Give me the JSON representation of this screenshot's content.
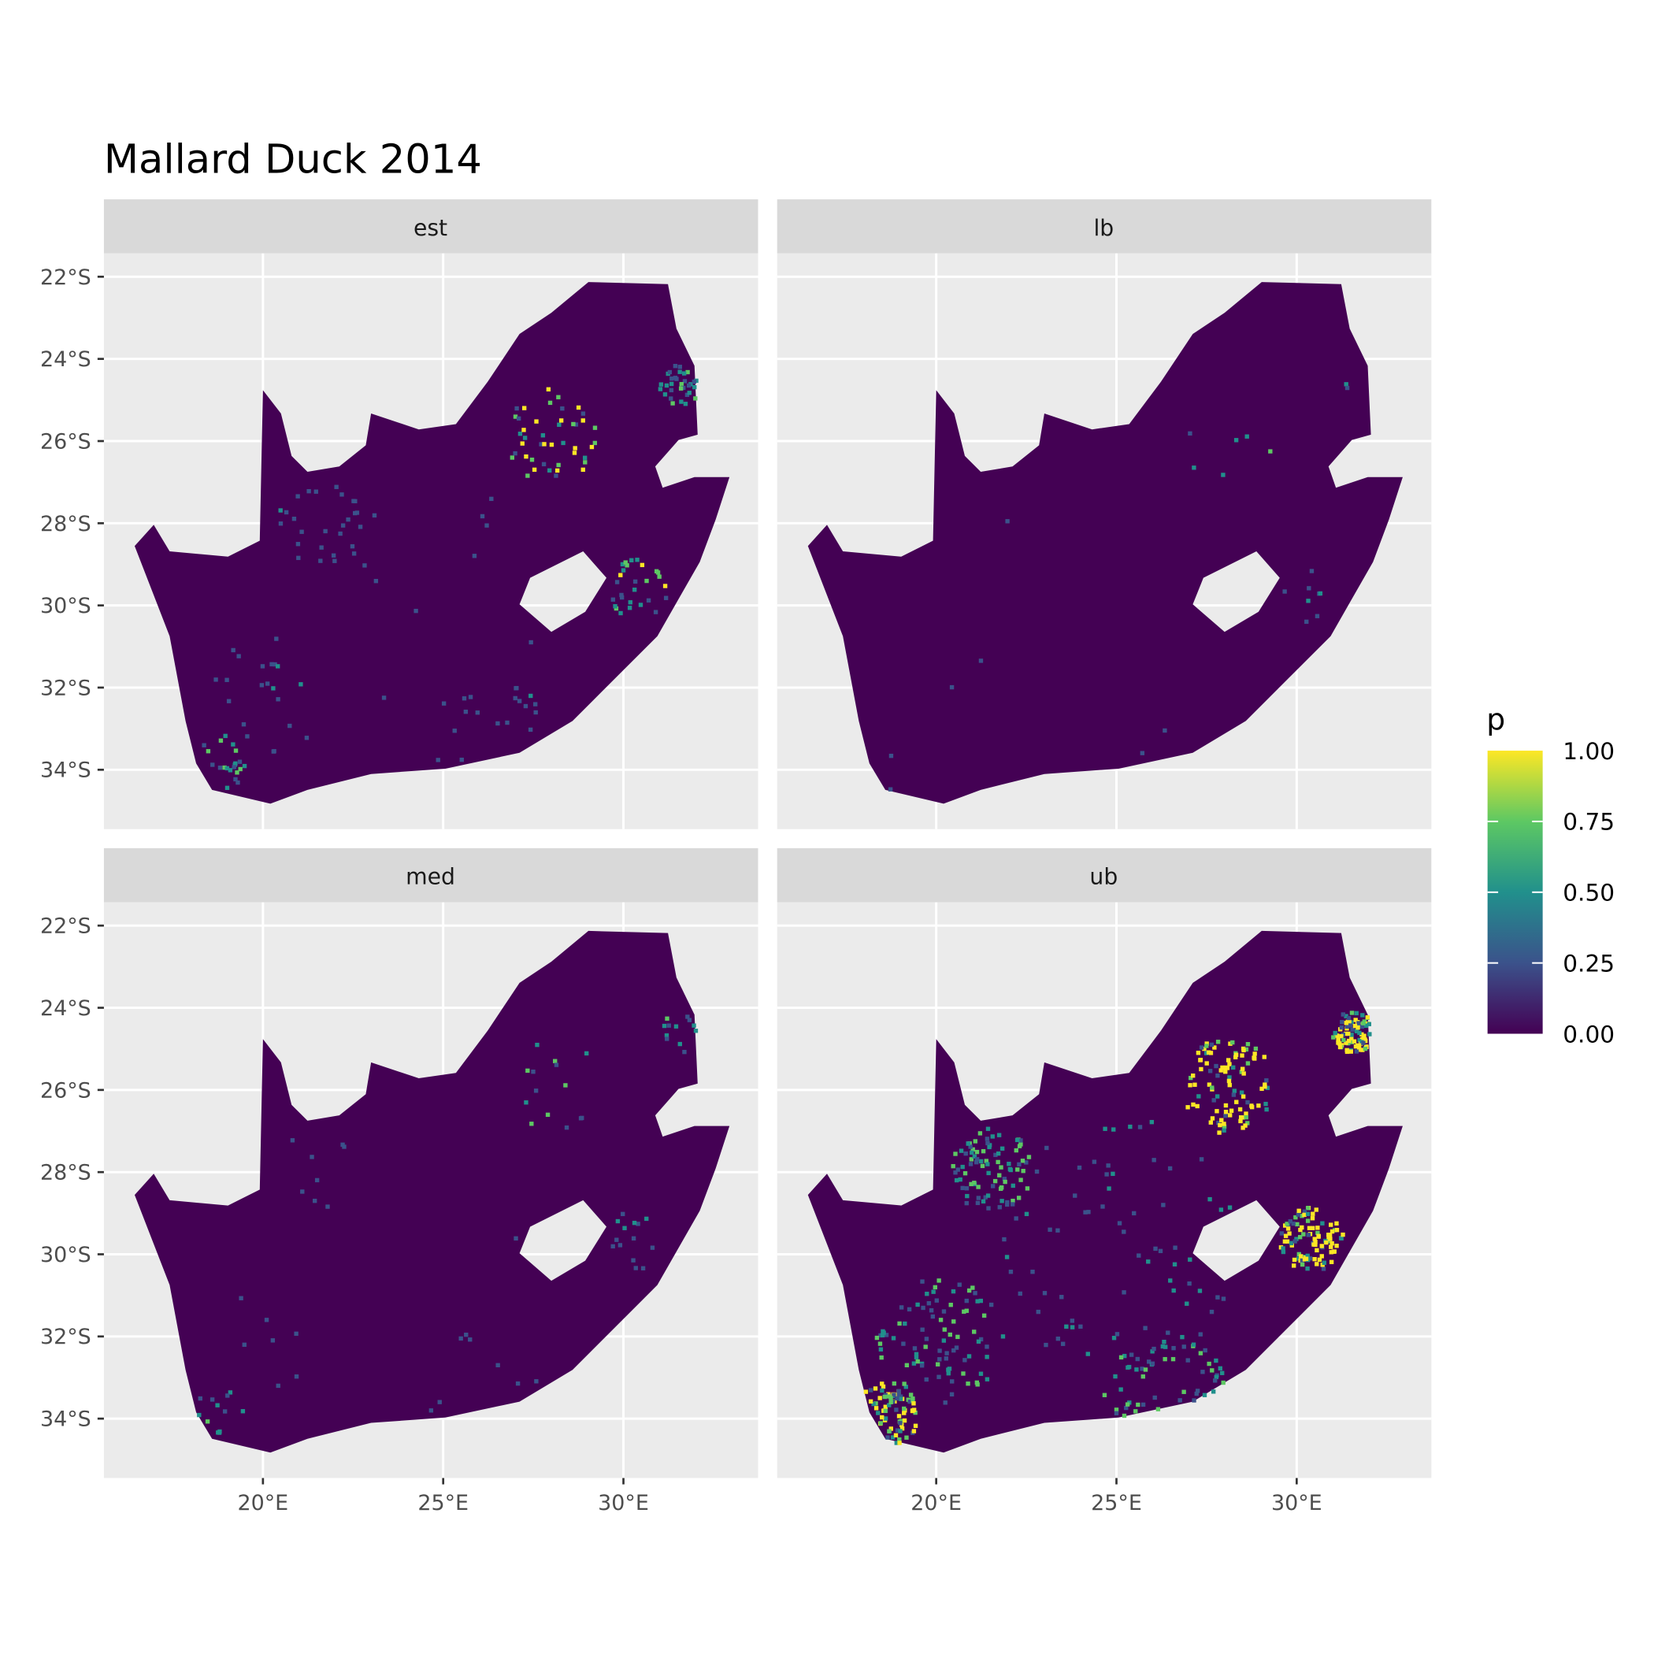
{
  "chart_data": {
    "type": "heatmap",
    "title": "Mallard Duck 2014",
    "facets": [
      {
        "label": "est",
        "intensity": "medium"
      },
      {
        "label": "lb",
        "intensity": "very low"
      },
      {
        "label": "med",
        "intensity": "low"
      },
      {
        "label": "ub",
        "intensity": "high"
      }
    ],
    "x_ticks": [
      "20°E",
      "25°E",
      "30°E"
    ],
    "x_tick_values": [
      20,
      25,
      30
    ],
    "y_ticks": [
      "22°S",
      "24°S",
      "26°S",
      "28°S",
      "30°S",
      "32°S",
      "34°S"
    ],
    "y_tick_values": [
      -22,
      -24,
      -26,
      -28,
      -30,
      -32,
      -34
    ],
    "xlim": [
      15.6,
      33.7
    ],
    "ylim": [
      -35.45,
      -21.43
    ],
    "grid": true,
    "legend": {
      "title": "p",
      "placement": "right",
      "breaks": [
        "1.00",
        "0.75",
        "0.50",
        "0.25",
        "0.00"
      ],
      "range": [
        0,
        1
      ],
      "colormap": "viridis",
      "colors": [
        "#440154",
        "#3b528b",
        "#21908c",
        "#5dc863",
        "#fde725"
      ]
    },
    "colors": {
      "panel_bg": "#ebebeb",
      "strip_bg": "#d9d9d9",
      "grid": "#ffffff",
      "low": "#440154",
      "high": "#fde725"
    }
  }
}
